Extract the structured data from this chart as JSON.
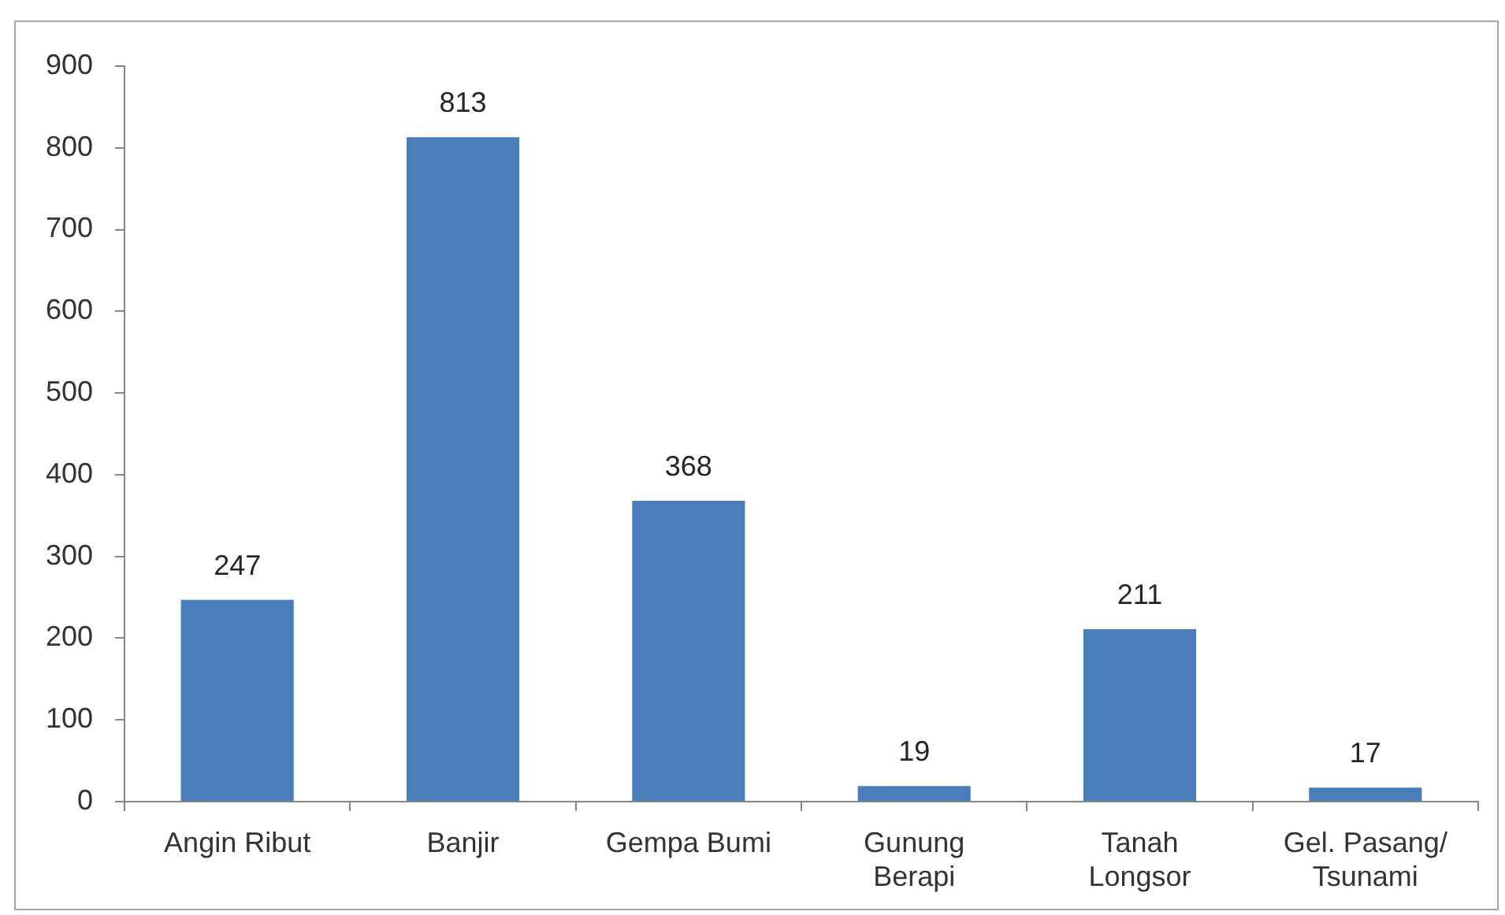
{
  "chart_data": {
    "type": "bar",
    "categories": [
      "Angin Ribut",
      "Banjir",
      "Gempa Bumi",
      "Gunung Berapi",
      "Tanah Longsor",
      "Gel. Pasang/ Tsunami"
    ],
    "values": [
      247,
      813,
      368,
      19,
      211,
      17
    ],
    "color": "#4a7ebb",
    "ylim": [
      0,
      900
    ],
    "yticks": [
      0,
      100,
      200,
      300,
      400,
      500,
      600,
      700,
      800,
      900
    ],
    "data_labels": true
  }
}
